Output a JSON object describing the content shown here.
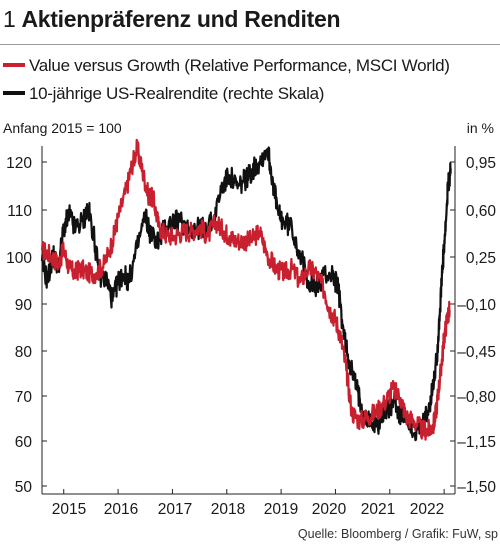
{
  "header": {
    "number": "1",
    "title": "Aktienpräferenz und Renditen"
  },
  "legend": [
    {
      "label": "Value versus Growth (Relative Performance, MSCI World)",
      "color": "#c8202f"
    },
    {
      "label": "10-jährige US-Realrendite (rechte Skala)",
      "color": "#111111"
    }
  ],
  "axis_notes": {
    "left": "Anfang 2015 = 100",
    "right": "in %"
  },
  "source": "Quelle: Bloomberg / Grafik: FuW, sp",
  "chart_data": {
    "type": "line",
    "title": "Aktienpräferenz und Renditen",
    "x_ticks": [
      "2015",
      "2016",
      "2017",
      "2018",
      "2019",
      "2020",
      "2021",
      "2022"
    ],
    "xlim": [
      2014.6,
      2022.2
    ],
    "left_axis": {
      "label": "Anfang 2015 = 100",
      "ticks": [
        120,
        110,
        100,
        90,
        80,
        70,
        60,
        50
      ],
      "ylim": [
        50,
        125
      ]
    },
    "right_axis": {
      "label": "in %",
      "ticks": [
        "0,95",
        "0,60",
        "0,25",
        "–0,10",
        "–0,45",
        "–0,80",
        "–1,15",
        "–1,50"
      ],
      "ylim": [
        -1.5,
        1.125
      ]
    },
    "grid": false,
    "series": [
      {
        "name": "Value versus Growth (Relative Performance, MSCI World)",
        "axis": "left",
        "color": "#c8202f",
        "x": [
          2014.6,
          2014.75,
          2014.9,
          2015.0,
          2015.1,
          2015.2,
          2015.3,
          2015.45,
          2015.6,
          2015.75,
          2015.9,
          2016.0,
          2016.15,
          2016.25,
          2016.35,
          2016.45,
          2016.55,
          2016.65,
          2016.75,
          2016.9,
          2017.05,
          2017.2,
          2017.35,
          2017.5,
          2017.65,
          2017.8,
          2017.95,
          2018.05,
          2018.15,
          2018.3,
          2018.45,
          2018.6,
          2018.75,
          2018.9,
          2019.05,
          2019.2,
          2019.35,
          2019.5,
          2019.65,
          2019.8,
          2019.9,
          2020.0,
          2020.1,
          2020.2,
          2020.3,
          2020.45,
          2020.6,
          2020.75,
          2020.9,
          2021.05,
          2021.2,
          2021.3,
          2021.45,
          2021.6,
          2021.7,
          2021.8,
          2021.85,
          2021.9,
          2021.95,
          2022.0,
          2022.05,
          2022.1
        ],
        "y": [
          101,
          100,
          98,
          101,
          97,
          96,
          97,
          96,
          96,
          98,
          103,
          108,
          114,
          119,
          123,
          118,
          113,
          112,
          106,
          104,
          104,
          105,
          105,
          106,
          104,
          107,
          105,
          104,
          103,
          103,
          103,
          105,
          100,
          97,
          96,
          97,
          94,
          97,
          96,
          92,
          88,
          86,
          82,
          75,
          66,
          64,
          65,
          66,
          68,
          71,
          69,
          65,
          64,
          62,
          62,
          63,
          66,
          71,
          76,
          82,
          86,
          88
        ]
      },
      {
        "name": "10-jährige US-Realrendite (rechte Skala)",
        "axis": "right",
        "color": "#111111",
        "x": [
          2014.6,
          2014.7,
          2014.8,
          2014.9,
          2015.0,
          2015.1,
          2015.2,
          2015.35,
          2015.45,
          2015.55,
          2015.65,
          2015.8,
          2015.9,
          2016.0,
          2016.1,
          2016.2,
          2016.35,
          2016.5,
          2016.6,
          2016.75,
          2016.85,
          2017.0,
          2017.15,
          2017.3,
          2017.45,
          2017.6,
          2017.75,
          2017.9,
          2018.05,
          2018.2,
          2018.3,
          2018.4,
          2018.5,
          2018.6,
          2018.75,
          2018.85,
          2018.95,
          2019.05,
          2019.2,
          2019.35,
          2019.5,
          2019.65,
          2019.8,
          2019.95,
          2020.05,
          2020.15,
          2020.25,
          2020.35,
          2020.45,
          2020.6,
          2020.75,
          2020.9,
          2021.0,
          2021.1,
          2021.2,
          2021.3,
          2021.45,
          2021.6,
          2021.7,
          2021.8,
          2021.87,
          2021.92,
          2021.97,
          2022.02,
          2022.07,
          2022.12
        ],
        "y": [
          0.2,
          0.05,
          0.25,
          0.15,
          0.45,
          0.55,
          0.45,
          0.5,
          0.6,
          0.4,
          0.1,
          0.05,
          -0.1,
          0.05,
          0.1,
          0.05,
          0.3,
          0.55,
          0.4,
          0.35,
          0.45,
          0.5,
          0.5,
          0.45,
          0.45,
          0.45,
          0.5,
          0.75,
          0.85,
          0.75,
          0.8,
          0.85,
          0.9,
          0.95,
          1.05,
          0.8,
          0.55,
          0.5,
          0.45,
          0.25,
          0.05,
          0.0,
          0.1,
          0.1,
          0.0,
          -0.35,
          -0.55,
          -0.7,
          -0.85,
          -1.0,
          -1.05,
          -0.95,
          -0.9,
          -0.85,
          -1.0,
          -0.95,
          -1.1,
          -1.05,
          -0.95,
          -0.75,
          -0.5,
          -0.2,
          0.15,
          0.4,
          0.75,
          0.9
        ]
      }
    ]
  }
}
